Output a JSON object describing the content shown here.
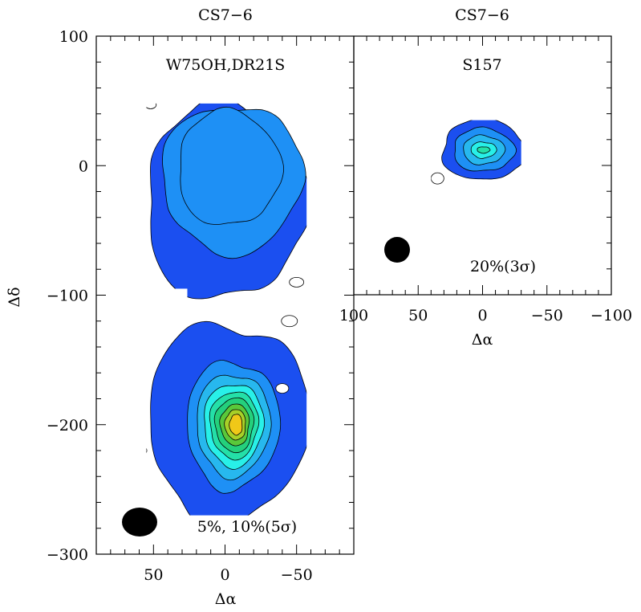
{
  "chart_data": [
    {
      "type": "heatmap",
      "title": "CS7−6",
      "source_label": "W75OH,DR21S",
      "annotation": "5%, 10%(5σ)",
      "xlabel": "Δα",
      "ylabel": "Δδ",
      "xlim": [
        90,
        -90
      ],
      "ylim": [
        -300,
        100
      ],
      "x_ticks": [
        50,
        0,
        -50
      ],
      "x_tick_labels": [
        "50",
        "0",
        "−50"
      ],
      "y_ticks": [
        100,
        0,
        -100,
        -200,
        -300
      ],
      "y_tick_labels": [
        "100",
        "0",
        "−100",
        "−200",
        "−300"
      ],
      "peaks": [
        {
          "x": -3,
          "y": -2,
          "level": "max"
        },
        {
          "x": -5,
          "y": -200,
          "level": "high"
        }
      ],
      "contour_levels_percent": [
        5,
        10,
        20,
        30,
        40,
        50,
        60,
        70,
        80,
        90
      ],
      "beam": {
        "x": 65,
        "y": -276
      }
    },
    {
      "type": "heatmap",
      "title": "CS7−6",
      "source_label": "S157",
      "annotation": "20%(3σ)",
      "xlabel": "Δα",
      "xlim": [
        100,
        -100
      ],
      "ylim": [
        -100,
        100
      ],
      "x_ticks": [
        100,
        50,
        0,
        -50,
        -100
      ],
      "x_tick_labels": [
        "100",
        "50",
        "0",
        "−50",
        "−100"
      ],
      "peaks": [
        {
          "x": -2,
          "y": 12,
          "level": "mid"
        }
      ],
      "contour_levels_percent": [
        20,
        40,
        60,
        80
      ],
      "beam": {
        "x": 68,
        "y": -66
      }
    }
  ],
  "colors": {
    "level1": "#1b4ff0",
    "level2": "#1e90f5",
    "level3": "#27b8ee",
    "level4": "#28f0e8",
    "level5": "#24e0a8",
    "level6": "#24d07c",
    "level7": "#5ac83a",
    "level8": "#a8d028",
    "level9": "#f0c818",
    "level10": "#f06418"
  }
}
